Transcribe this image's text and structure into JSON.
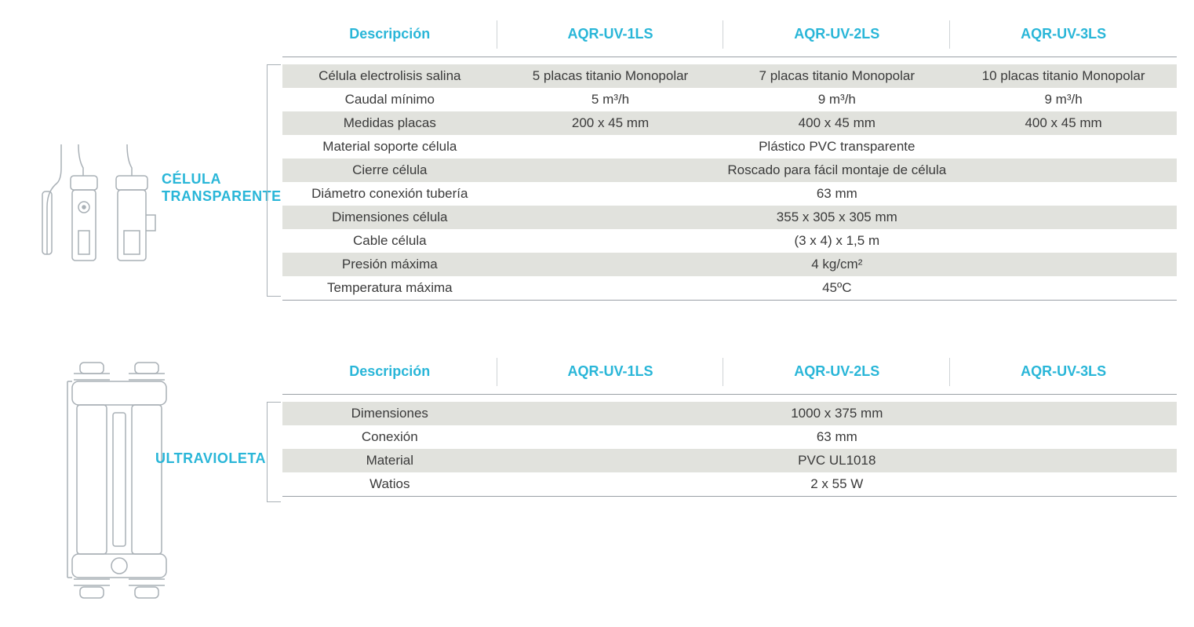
{
  "colors": {
    "accent": "#29b6d8",
    "text": "#3a3a3a",
    "shade_row": "#e1e2dd",
    "plain_row": "#ffffff",
    "border": "#9aa0a6",
    "divider": "#cfd3d6",
    "icon_stroke": "#a9b0b6"
  },
  "table1": {
    "label_line1": "CÉLULA",
    "label_line2": "TRANSPARENTE",
    "headers": [
      "Descripción",
      "AQR-UV-1LS",
      "AQR-UV-2LS",
      "AQR-UV-3LS"
    ],
    "rows": [
      {
        "shade": true,
        "span": false,
        "cells": [
          "Célula electrolisis salina",
          "5 placas titanio Monopolar",
          "7 placas titanio Monopolar",
          "10 placas titanio Monopolar"
        ]
      },
      {
        "shade": false,
        "span": false,
        "cells": [
          "Caudal mínimo",
          "5 m³/h",
          "9 m³/h",
          "9 m³/h"
        ]
      },
      {
        "shade": true,
        "span": false,
        "cells": [
          "Medidas placas",
          "200 x 45 mm",
          "400 x 45 mm",
          "400 x 45 mm"
        ]
      },
      {
        "shade": false,
        "span": true,
        "cells": [
          "Material soporte célula",
          "Plástico PVC transparente"
        ]
      },
      {
        "shade": true,
        "span": true,
        "cells": [
          "Cierre célula",
          "Roscado para fácil montaje de célula"
        ]
      },
      {
        "shade": false,
        "span": true,
        "cells": [
          "Diámetro conexión tubería",
          "63 mm"
        ]
      },
      {
        "shade": true,
        "span": true,
        "cells": [
          "Dimensiones célula",
          "355 x 305 x 305 mm"
        ]
      },
      {
        "shade": false,
        "span": true,
        "cells": [
          "Cable célula",
          "(3 x 4) x 1,5 m"
        ]
      },
      {
        "shade": true,
        "span": true,
        "cells": [
          "Presión máxima",
          "4 kg/cm²"
        ]
      },
      {
        "shade": false,
        "span": true,
        "cells": [
          "Temperatura máxima",
          "45ºC"
        ]
      }
    ]
  },
  "table2": {
    "label": "ULTRAVIOLETA",
    "headers": [
      "Descripción",
      "AQR-UV-1LS",
      "AQR-UV-2LS",
      "AQR-UV-3LS"
    ],
    "rows": [
      {
        "shade": true,
        "span": true,
        "cells": [
          "Dimensiones",
          "1000 x 375 mm"
        ]
      },
      {
        "shade": false,
        "span": true,
        "cells": [
          "Conexión",
          "63 mm"
        ]
      },
      {
        "shade": true,
        "span": true,
        "cells": [
          "Material",
          "PVC UL1018"
        ]
      },
      {
        "shade": false,
        "span": true,
        "cells": [
          "Watios",
          "2 x 55 W"
        ]
      }
    ]
  }
}
